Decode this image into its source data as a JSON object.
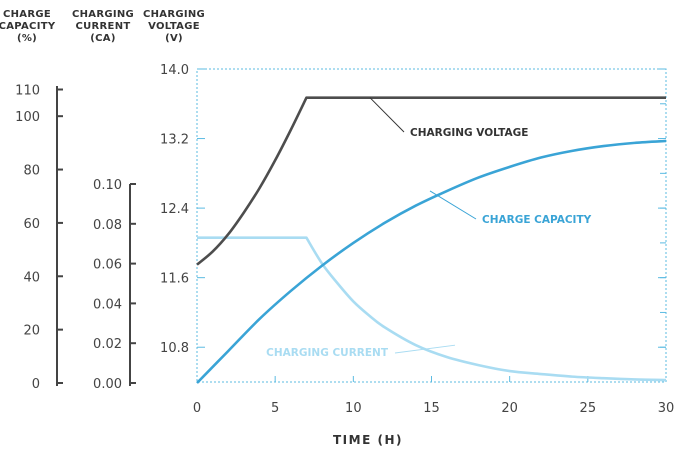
{
  "chart_data": {
    "type": "line",
    "x_axis": {
      "title": "TIME (H)",
      "range": [
        0,
        30
      ],
      "ticks": [
        "0",
        "5",
        "10",
        "15",
        "20",
        "25",
        "30"
      ]
    },
    "y_axes": {
      "capacity": {
        "header": [
          "CHARGE",
          "CAPACITY",
          "(%)"
        ],
        "range": [
          0,
          110
        ],
        "ticks": [
          "0",
          "20",
          "40",
          "60",
          "80",
          "100",
          "110"
        ]
      },
      "current": {
        "header": [
          "CHARGING",
          "CURRENT",
          "(CA)"
        ],
        "range": [
          0,
          0.1
        ],
        "ticks": [
          "0.00",
          "0.02",
          "0.04",
          "0.06",
          "0.08",
          "0.10"
        ]
      },
      "voltage": {
        "header": [
          "CHARGING",
          "VOLTAGE",
          "(V)"
        ],
        "range": [
          10.4,
          14.0
        ],
        "ticks": [
          "10.8",
          "11.6",
          "12.4",
          "13.2",
          "14.0"
        ]
      }
    },
    "series": [
      {
        "name": "CHARGING VOLTAGE",
        "axis": "voltage",
        "color": "#4d4d4d",
        "x": [
          0,
          1,
          2,
          3,
          4,
          5,
          6,
          7,
          10,
          15,
          20,
          25,
          30
        ],
        "y": [
          11.75,
          11.9,
          12.1,
          12.35,
          12.63,
          12.95,
          13.3,
          13.67,
          13.67,
          13.67,
          13.67,
          13.67,
          13.67
        ]
      },
      {
        "name": "CHARGE CAPACITY",
        "axis": "capacity",
        "color": "#3aa4d6",
        "x": [
          0,
          2,
          4,
          6,
          8,
          10,
          12,
          14,
          16,
          18,
          20,
          22,
          24,
          26,
          28,
          30
        ],
        "y": [
          0,
          12,
          24,
          34.5,
          44,
          52.5,
          60,
          66.5,
          72,
          77,
          81,
          84.5,
          87,
          88.8,
          90,
          90.7
        ]
      },
      {
        "name": "CHARGING CURRENT",
        "axis": "current",
        "color": "#a9dcf2",
        "x": [
          0,
          7,
          8,
          9,
          10,
          11,
          12,
          14,
          16,
          18,
          20,
          22,
          24,
          26,
          28,
          30
        ],
        "y": [
          0.073,
          0.073,
          0.06,
          0.05,
          0.041,
          0.034,
          0.028,
          0.019,
          0.013,
          0.009,
          0.006,
          0.0045,
          0.0032,
          0.0024,
          0.0018,
          0.0015
        ]
      }
    ],
    "annotations": [
      {
        "text": "CHARGING VOLTAGE",
        "series": "CHARGING VOLTAGE",
        "color": "#333333"
      },
      {
        "text": "CHARGE CAPACITY",
        "series": "CHARGE CAPACITY",
        "color": "#3aa4d6"
      },
      {
        "text": "CHARGING CURRENT",
        "series": "CHARGING CURRENT",
        "color": "#a9dcf2"
      }
    ],
    "grid": "dashed plot frame with tick marks"
  }
}
